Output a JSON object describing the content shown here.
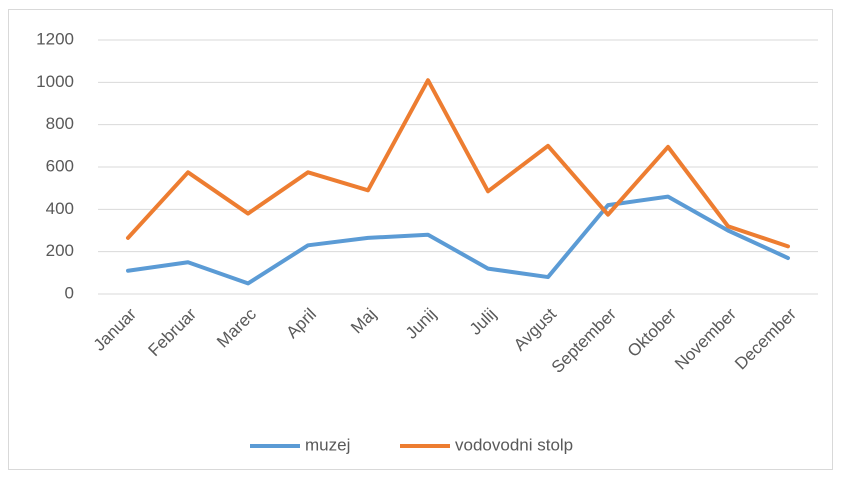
{
  "chart_data": {
    "type": "line",
    "categories": [
      "Januar",
      "Februar",
      "Marec",
      "April",
      "Maj",
      "Junij",
      "Julij",
      "Avgust",
      "September",
      "Oktober",
      "November",
      "December"
    ],
    "series": [
      {
        "name": "muzej",
        "color": "#5b9bd5",
        "values": [
          110,
          150,
          50,
          230,
          265,
          280,
          120,
          80,
          420,
          460,
          300,
          170
        ]
      },
      {
        "name": "vodovodni stolp",
        "color": "#ed7d31",
        "values": [
          265,
          575,
          380,
          575,
          490,
          1010,
          485,
          700,
          375,
          695,
          320,
          225
        ]
      }
    ],
    "ylim": [
      0,
      1200
    ],
    "yticks": [
      0,
      200,
      400,
      600,
      800,
      1000,
      1200
    ],
    "grid": true,
    "legend": "bottom"
  }
}
